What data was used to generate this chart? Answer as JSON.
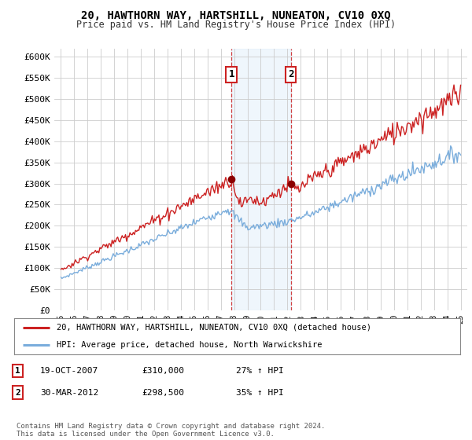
{
  "title": "20, HAWTHORN WAY, HARTSHILL, NUNEATON, CV10 0XQ",
  "subtitle": "Price paid vs. HM Land Registry's House Price Index (HPI)",
  "ylabel_ticks": [
    "£0",
    "£50K",
    "£100K",
    "£150K",
    "£200K",
    "£250K",
    "£300K",
    "£350K",
    "£400K",
    "£450K",
    "£500K",
    "£550K",
    "£600K"
  ],
  "ytick_values": [
    0,
    50000,
    100000,
    150000,
    200000,
    250000,
    300000,
    350000,
    400000,
    450000,
    500000,
    550000,
    600000
  ],
  "ylim": [
    0,
    620000
  ],
  "xlim_start": 1994.5,
  "xlim_end": 2025.5,
  "hpi_color": "#7aaddc",
  "price_color": "#cc2222",
  "shade_color": "#d8eaf8",
  "transaction1_x": 2007.8,
  "transaction1_y": 310000,
  "transaction2_x": 2012.25,
  "transaction2_y": 298500,
  "shade_x1": 2007.8,
  "shade_x2": 2012.25,
  "legend_house_label": "20, HAWTHORN WAY, HARTSHILL, NUNEATON, CV10 0XQ (detached house)",
  "legend_hpi_label": "HPI: Average price, detached house, North Warwickshire",
  "table_rows": [
    {
      "num": "1",
      "date": "19-OCT-2007",
      "price": "£310,000",
      "change": "27% ↑ HPI"
    },
    {
      "num": "2",
      "date": "30-MAR-2012",
      "price": "£298,500",
      "change": "35% ↑ HPI"
    }
  ],
  "footnote": "Contains HM Land Registry data © Crown copyright and database right 2024.\nThis data is licensed under the Open Government Licence v3.0.",
  "background_color": "#ffffff",
  "grid_color": "#cccccc",
  "xtick_labels": [
    "95",
    "96",
    "97",
    "98",
    "99",
    "00",
    "01",
    "02",
    "03",
    "04",
    "05",
    "06",
    "07",
    "08",
    "09",
    "10",
    "11",
    "12",
    "13",
    "14",
    "15",
    "16",
    "17",
    "18",
    "19",
    "20",
    "21",
    "22",
    "23",
    "24",
    "25"
  ],
  "xtick_years": [
    1995,
    1996,
    1997,
    1998,
    1999,
    2000,
    2001,
    2002,
    2003,
    2004,
    2005,
    2006,
    2007,
    2008,
    2009,
    2010,
    2011,
    2012,
    2013,
    2014,
    2015,
    2016,
    2017,
    2018,
    2019,
    2020,
    2021,
    2022,
    2023,
    2024,
    2025
  ]
}
